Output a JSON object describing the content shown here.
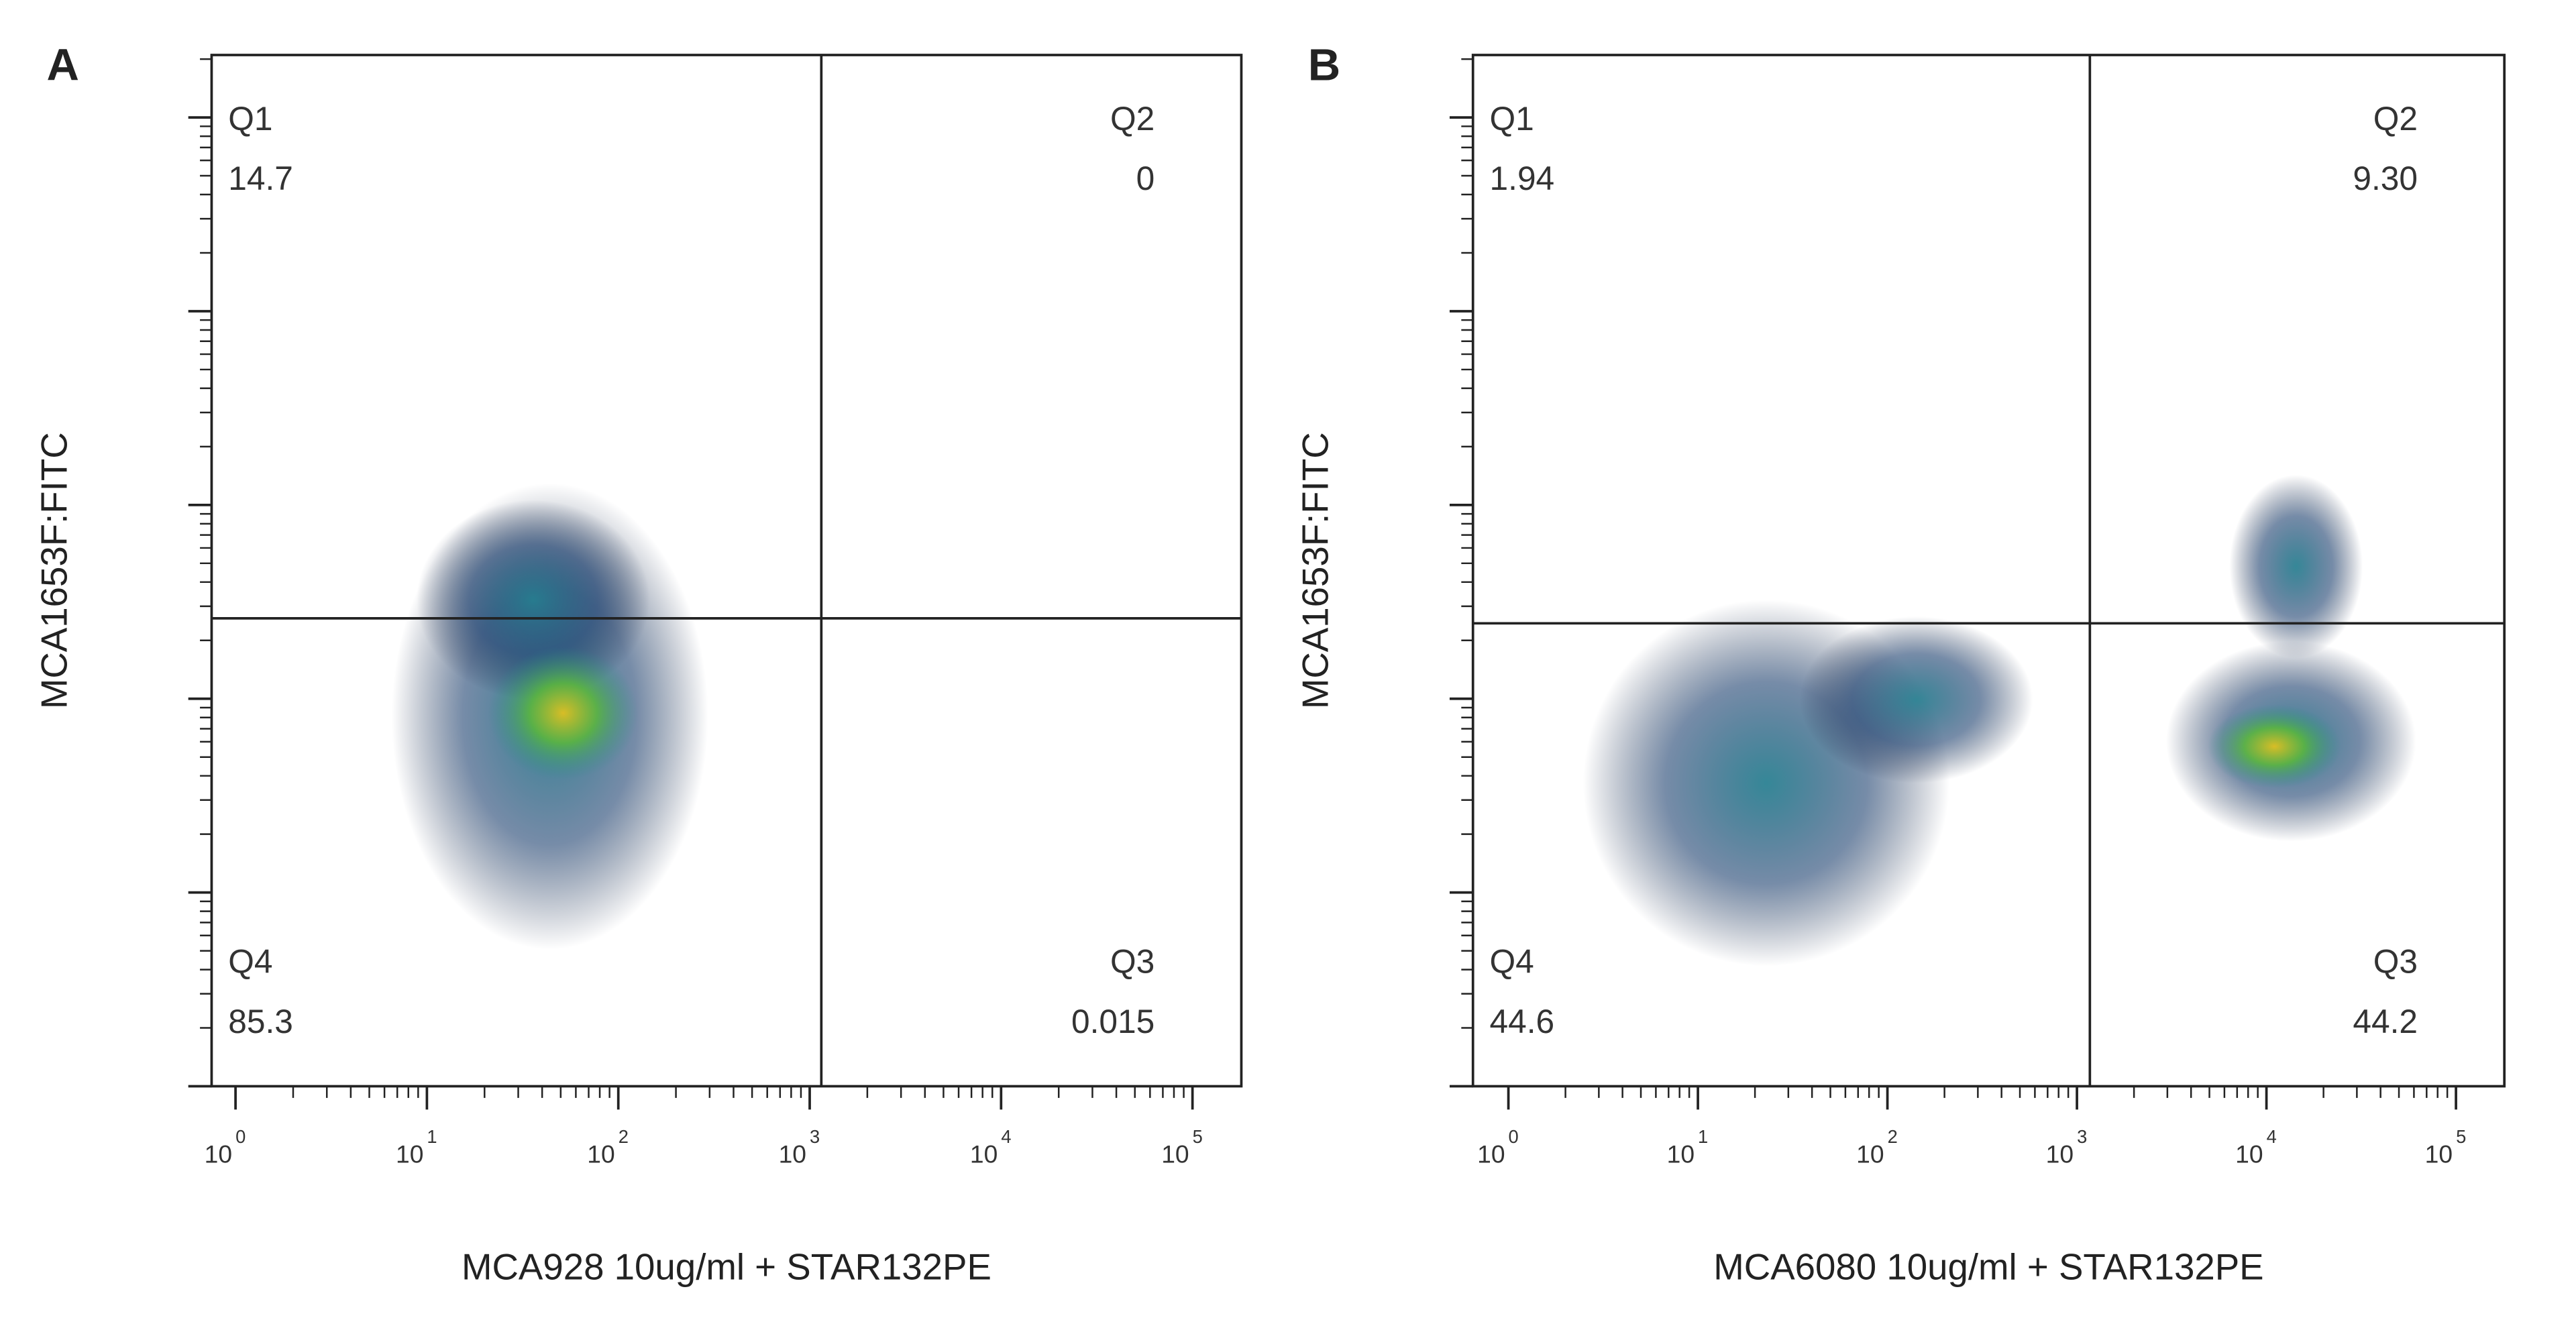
{
  "chart_data": [
    {
      "type": "flow-quadrant",
      "panel_label": "A",
      "xlabel": "MCA928 10ug/ml + STAR132PE",
      "ylabel": "MCA1653F:FITC",
      "xscale": "log",
      "yscale": "log",
      "xlim": [
        0.75,
        180000
      ],
      "ylim": [
        1,
        210000
      ],
      "xticks": [
        {
          "value": 1,
          "label": "10",
          "exponent": "0"
        },
        {
          "value": 10,
          "label": "10",
          "exponent": "1"
        },
        {
          "value": 100,
          "label": "10",
          "exponent": "2"
        },
        {
          "value": 1000,
          "label": "10",
          "exponent": "3"
        },
        {
          "value": 10000,
          "label": "10",
          "exponent": "4"
        },
        {
          "value": 100000,
          "label": "10",
          "exponent": "5"
        }
      ],
      "yticks": [
        1,
        10,
        100,
        1000,
        10000,
        100000
      ],
      "gate": {
        "x": 1150,
        "y": 260
      },
      "quadrants": [
        "Q1",
        "Q2",
        "Q3",
        "Q4"
      ],
      "values": [
        14.7,
        0,
        0.015,
        85.3
      ]
    },
    {
      "type": "flow-quadrant",
      "panel_label": "B",
      "xlabel": "MCA6080 10ug/ml + STAR132PE",
      "ylabel": "MCA1653F:FITC",
      "xscale": "log",
      "yscale": "log",
      "xlim": [
        0.65,
        180000
      ],
      "ylim": [
        1,
        210000
      ],
      "xticks": [
        {
          "value": 1,
          "label": "10",
          "exponent": "0"
        },
        {
          "value": 10,
          "label": "10",
          "exponent": "1"
        },
        {
          "value": 100,
          "label": "10",
          "exponent": "2"
        },
        {
          "value": 1000,
          "label": "10",
          "exponent": "3"
        },
        {
          "value": 10000,
          "label": "10",
          "exponent": "4"
        },
        {
          "value": 100000,
          "label": "10",
          "exponent": "5"
        }
      ],
      "yticks": [
        1,
        10,
        100,
        1000,
        10000,
        100000
      ],
      "gate": {
        "x": 1170,
        "y": 245
      },
      "quadrants": [
        "Q1",
        "Q2",
        "Q3",
        "Q4"
      ],
      "values": [
        1.94,
        9.3,
        44.2,
        44.6
      ],
      "value_labels": [
        "1.94",
        "9.30",
        "44.2",
        "44.6"
      ]
    }
  ]
}
